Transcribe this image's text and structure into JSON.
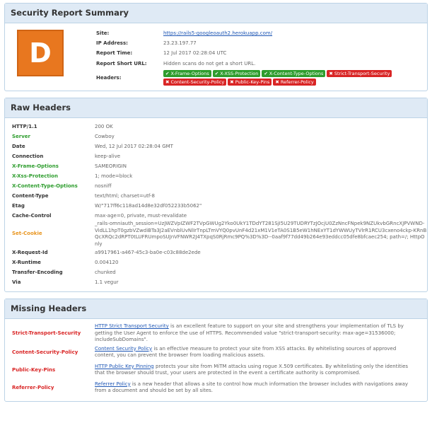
{
  "summary": {
    "title": "Security Report Summary",
    "grade": "D",
    "grade_color": "#e8771f",
    "site_label": "Site:",
    "site_value": "https://rails5-googleoauth2.herokuapp.com/",
    "ip_label": "IP Address:",
    "ip_value": "23.23.197.77",
    "time_label": "Report Time:",
    "time_value": "12 Jul 2017 02:28:04 UTC",
    "short_url_label": "Report Short URL:",
    "short_url_value": "Hidden scans do not get a short URL.",
    "headers_label": "Headers:",
    "badges": [
      {
        "label": "X-Frame-Options",
        "status": "ok",
        "mark": "✔"
      },
      {
        "label": "X-XSS-Protection",
        "status": "ok",
        "mark": "✔"
      },
      {
        "label": "X-Content-Type-Options",
        "status": "ok",
        "mark": "✔"
      },
      {
        "label": "Strict-Transport-Security",
        "status": "bad",
        "mark": "✖"
      },
      {
        "label": "Content-Security-Policy",
        "status": "bad",
        "mark": "✖"
      },
      {
        "label": "Public-Key-Pins",
        "status": "bad",
        "mark": "✖"
      },
      {
        "label": "Referrer-Policy",
        "status": "bad",
        "mark": "✖"
      }
    ]
  },
  "raw": {
    "title": "Raw Headers",
    "rows": [
      {
        "key": "HTTP/1.1",
        "value": "200 OK",
        "color": "default"
      },
      {
        "key": "Server",
        "value": "Cowboy",
        "color": "green"
      },
      {
        "key": "Date",
        "value": "Wed, 12 Jul 2017 02:28:04 GMT",
        "color": "default"
      },
      {
        "key": "Connection",
        "value": "keep-alive",
        "color": "default"
      },
      {
        "key": "X-Frame-Options",
        "value": "SAMEORIGIN",
        "color": "green"
      },
      {
        "key": "X-Xss-Protection",
        "value": "1; mode=block",
        "color": "green"
      },
      {
        "key": "X-Content-Type-Options",
        "value": "nosniff",
        "color": "green"
      },
      {
        "key": "Content-Type",
        "value": "text/html; charset=utf-8",
        "color": "default"
      },
      {
        "key": "Etag",
        "value": "W/\"717ff6c118ad14d8e32df052233b5062\"",
        "color": "default"
      },
      {
        "key": "Cache-Control",
        "value": "max-age=0, private, must-revalidate",
        "color": "default"
      },
      {
        "key": "Set-Cookie",
        "value": "_rails-omniauth_session=UzJWZVpIZWF2TVpGWUg2Yko0UkY1TDdYT281SjI5U29TUDRYTzJOcjU0ZzNncFNpek9NZUkvbGRncXJPVWND-VidLL1hpT0gzbVZwdiBTa3J2aEVnblUvNlIrTnpLTmVYQ0pvUnF4d21xM1V1eTA0S1B5eW1hNExYT1dYWWUyTVlrR1RCU3cxeno4ckp-KRnBQcXRQc2dRPT0tLUFRUmpoSUJnVFNWR2J4TXpqS0RjRmc9PQ%3D%3D--0aaf9f77dd49b264e93eddcc05dfe8bfcaec254; path=/; HttpOnly",
        "color": "orange"
      },
      {
        "key": "X-Request-Id",
        "value": "a9917961-a467-45c3-ba0e-c03c88de2ede",
        "color": "default"
      },
      {
        "key": "X-Runtime",
        "value": "0.004120",
        "color": "default"
      },
      {
        "key": "Transfer-Encoding",
        "value": "chunked",
        "color": "default"
      },
      {
        "key": "Via",
        "value": "1.1 vegur",
        "color": "default"
      }
    ]
  },
  "missing": {
    "title": "Missing Headers",
    "rows": [
      {
        "key": "Strict-Transport-Security",
        "link": "HTTP Strict Transport Security",
        "text": " is an excellent feature to support on your site and strengthens your implementation of TLS by getting the User Agent to enforce the use of HTTPS. Recommended value \"strict-transport-security: max-age=31536000; includeSubDomains\"."
      },
      {
        "key": "Content-Security-Policy",
        "link": "Content Security Policy",
        "text": " is an effective measure to protect your site from XSS attacks. By whitelisting sources of approved content, you can prevent the browser from loading malicious assets."
      },
      {
        "key": "Public-Key-Pins",
        "link": "HTTP Public Key Pinning",
        "text": " protects your site from MiTM attacks using rogue X.509 certificates. By whitelisting only the identities that the browser should trust, your users are protected in the event a certificate authority is compromised."
      },
      {
        "key": "Referrer-Policy",
        "link": "Referrer Policy",
        "text": " is a new header that allows a site to control how much information the browser includes with navigations away from a document and should be set by all sites."
      }
    ]
  },
  "colors": {
    "ok": "#2e9d2e",
    "bad": "#d92525",
    "cookie": "#e8951f",
    "link": "#1f57b5",
    "panel_header_bg": "#dfeaf5"
  }
}
